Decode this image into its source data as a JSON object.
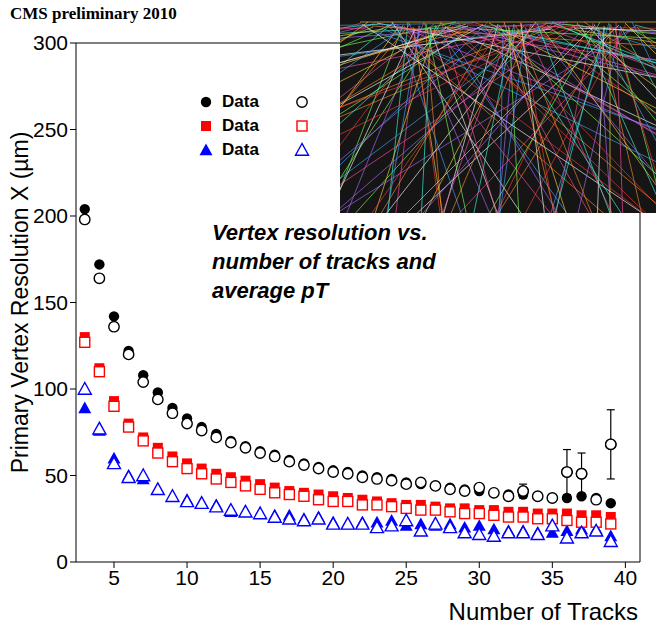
{
  "chart_data": {
    "type": "scatter",
    "title": "CMS preliminary 2010",
    "x_label": "Number of Tracks",
    "y_label": "Primary Vertex Resolution X (µm)",
    "annotation": "Vertex resolution vs. number of tracks and average pT",
    "legend": "upper left",
    "x": [
      3,
      4,
      5,
      6,
      7,
      8,
      9,
      10,
      11,
      12,
      13,
      14,
      15,
      16,
      17,
      18,
      19,
      20,
      21,
      22,
      23,
      24,
      25,
      26,
      27,
      28,
      29,
      30,
      31,
      32,
      33,
      34,
      35,
      36,
      37,
      38,
      39
    ],
    "xlim": [
      2.4,
      41
    ],
    "xticks": [
      5,
      10,
      15,
      20,
      25,
      30,
      35,
      40
    ],
    "ylim": [
      0,
      300
    ],
    "yticks": [
      0,
      50,
      100,
      150,
      200,
      250,
      300
    ],
    "series": [
      {
        "name": "Data",
        "color": "#000000",
        "marker": "circle",
        "values": [
          204,
          172,
          142,
          122,
          108,
          98,
          89,
          83,
          78,
          74,
          70,
          67,
          64,
          62,
          59,
          57,
          55,
          53,
          52,
          50,
          49,
          48,
          46,
          45,
          44,
          43,
          42,
          41,
          40,
          39,
          39,
          38,
          37,
          37,
          38,
          37,
          34
        ]
      },
      {
        "name": "Data",
        "color": "#ff0000",
        "marker": "square",
        "values": [
          130,
          112,
          93,
          80,
          72,
          66,
          61,
          57,
          54,
          51,
          49,
          47,
          45,
          43,
          41,
          40,
          39,
          38,
          37,
          36,
          35,
          34,
          33,
          33,
          32,
          31,
          31,
          30,
          30,
          29,
          29,
          28,
          28,
          28,
          27,
          27,
          26
        ]
      },
      {
        "name": "Data",
        "color": "#0000ff",
        "marker": "triangle",
        "values": [
          89,
          76,
          60,
          50,
          48,
          42,
          38,
          36,
          34,
          33,
          29,
          29,
          28,
          27,
          27,
          25,
          26,
          23,
          22,
          23,
          23,
          24,
          21,
          22,
          21,
          22,
          20,
          21,
          19,
          18,
          18,
          17,
          17,
          18,
          19,
          19,
          15
        ]
      },
      {
        "color": "#000000",
        "marker": "open_circle",
        "values": [
          198,
          164,
          136,
          120,
          104,
          94,
          86,
          80,
          76,
          72,
          69,
          66,
          63,
          61,
          58,
          56,
          54,
          52,
          51,
          49,
          48,
          47,
          45,
          46,
          44,
          42,
          41,
          43,
          40,
          38,
          41,
          38,
          37,
          52,
          51,
          36,
          68
        ],
        "errors": [
          null,
          null,
          null,
          null,
          null,
          null,
          null,
          null,
          null,
          null,
          null,
          null,
          null,
          null,
          null,
          null,
          null,
          null,
          null,
          null,
          null,
          null,
          null,
          null,
          null,
          null,
          null,
          null,
          null,
          null,
          4,
          null,
          null,
          13,
          12,
          null,
          20
        ]
      },
      {
        "color": "#ff0000",
        "marker": "open_square",
        "values": [
          127,
          110,
          90,
          78,
          70,
          63,
          58,
          54,
          51,
          48,
          46,
          44,
          42,
          40,
          39,
          38,
          36,
          35,
          35,
          33,
          33,
          32,
          31,
          30,
          30,
          29,
          28,
          28,
          27,
          26,
          26,
          25,
          25,
          24,
          23,
          23,
          22
        ]
      },
      {
        "color": "#0000ff",
        "marker": "open_triangle",
        "values": [
          100,
          77,
          57,
          49,
          50,
          42,
          38,
          35,
          34,
          32,
          30,
          29,
          28,
          26,
          25,
          24,
          25,
          22,
          22,
          22,
          20,
          21,
          24,
          18,
          22,
          20,
          17,
          16,
          15,
          17,
          17,
          16,
          21,
          14,
          17,
          18,
          12
        ]
      }
    ]
  }
}
